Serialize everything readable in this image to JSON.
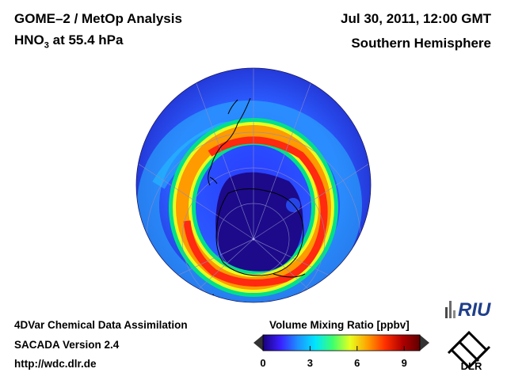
{
  "header": {
    "title": "GOME–2 / MetOp Analysis",
    "species_main": "HNO",
    "species_sub": "3",
    "species_rest": " at 55.4 hPa",
    "datetime": "Jul 30, 2011, 12:00 GMT",
    "region": "Southern Hemisphere"
  },
  "footer": {
    "line1": "4DVar Chemical Data Assimilation",
    "line2": "SACADA Version 2.4",
    "line3": "http://wdc.dlr.de"
  },
  "colorbar": {
    "title": "Volume Mixing Ratio [ppbv]",
    "min": 0,
    "max": 10,
    "ticks": [
      "0",
      "3",
      "6",
      "9"
    ],
    "tick_values": [
      0,
      3,
      6,
      9
    ],
    "colors": [
      "#1a007a",
      "#3a1fff",
      "#1e90ff",
      "#00e5ff",
      "#3cff6e",
      "#e8ff1e",
      "#ffa000",
      "#ff3000",
      "#b00000",
      "#600000"
    ]
  },
  "logos": {
    "riu": "RIU",
    "dlr": "DLR"
  }
}
